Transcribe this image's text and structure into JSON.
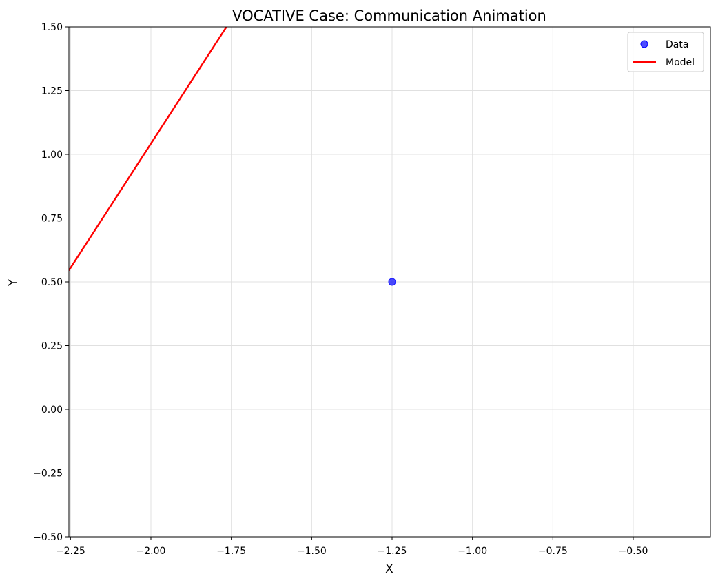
{
  "chart_data": {
    "type": "scatter",
    "title": "VOCATIVE Case: Communication Animation",
    "xlabel": "X",
    "ylabel": "Y",
    "xlim": [
      -2.255,
      -0.26
    ],
    "ylim": [
      -0.5,
      1.5
    ],
    "xticks": [
      -2.25,
      -2.0,
      -1.75,
      -1.5,
      -1.25,
      -1.0,
      -0.75,
      -0.5
    ],
    "xtick_labels": [
      "−2.25",
      "−2.00",
      "−1.75",
      "−1.50",
      "−1.25",
      "−1.00",
      "−0.75",
      "−0.50"
    ],
    "yticks": [
      -0.5,
      -0.25,
      0.0,
      0.25,
      0.5,
      0.75,
      1.0,
      1.25,
      1.5
    ],
    "ytick_labels": [
      "−0.50",
      "−0.25",
      "0.00",
      "0.25",
      "0.50",
      "0.75",
      "1.00",
      "1.25",
      "1.50"
    ],
    "grid": true,
    "legend_position": "top-right",
    "series": [
      {
        "name": "Data",
        "kind": "scatter",
        "color": "#0000ff",
        "points": [
          {
            "x": -1.25,
            "y": 0.5
          }
        ]
      },
      {
        "name": "Model",
        "kind": "line",
        "color": "#ff0000",
        "points": [
          {
            "x": -2.255,
            "y": 0.545
          },
          {
            "x": -1.765,
            "y": 1.5
          }
        ]
      }
    ]
  }
}
